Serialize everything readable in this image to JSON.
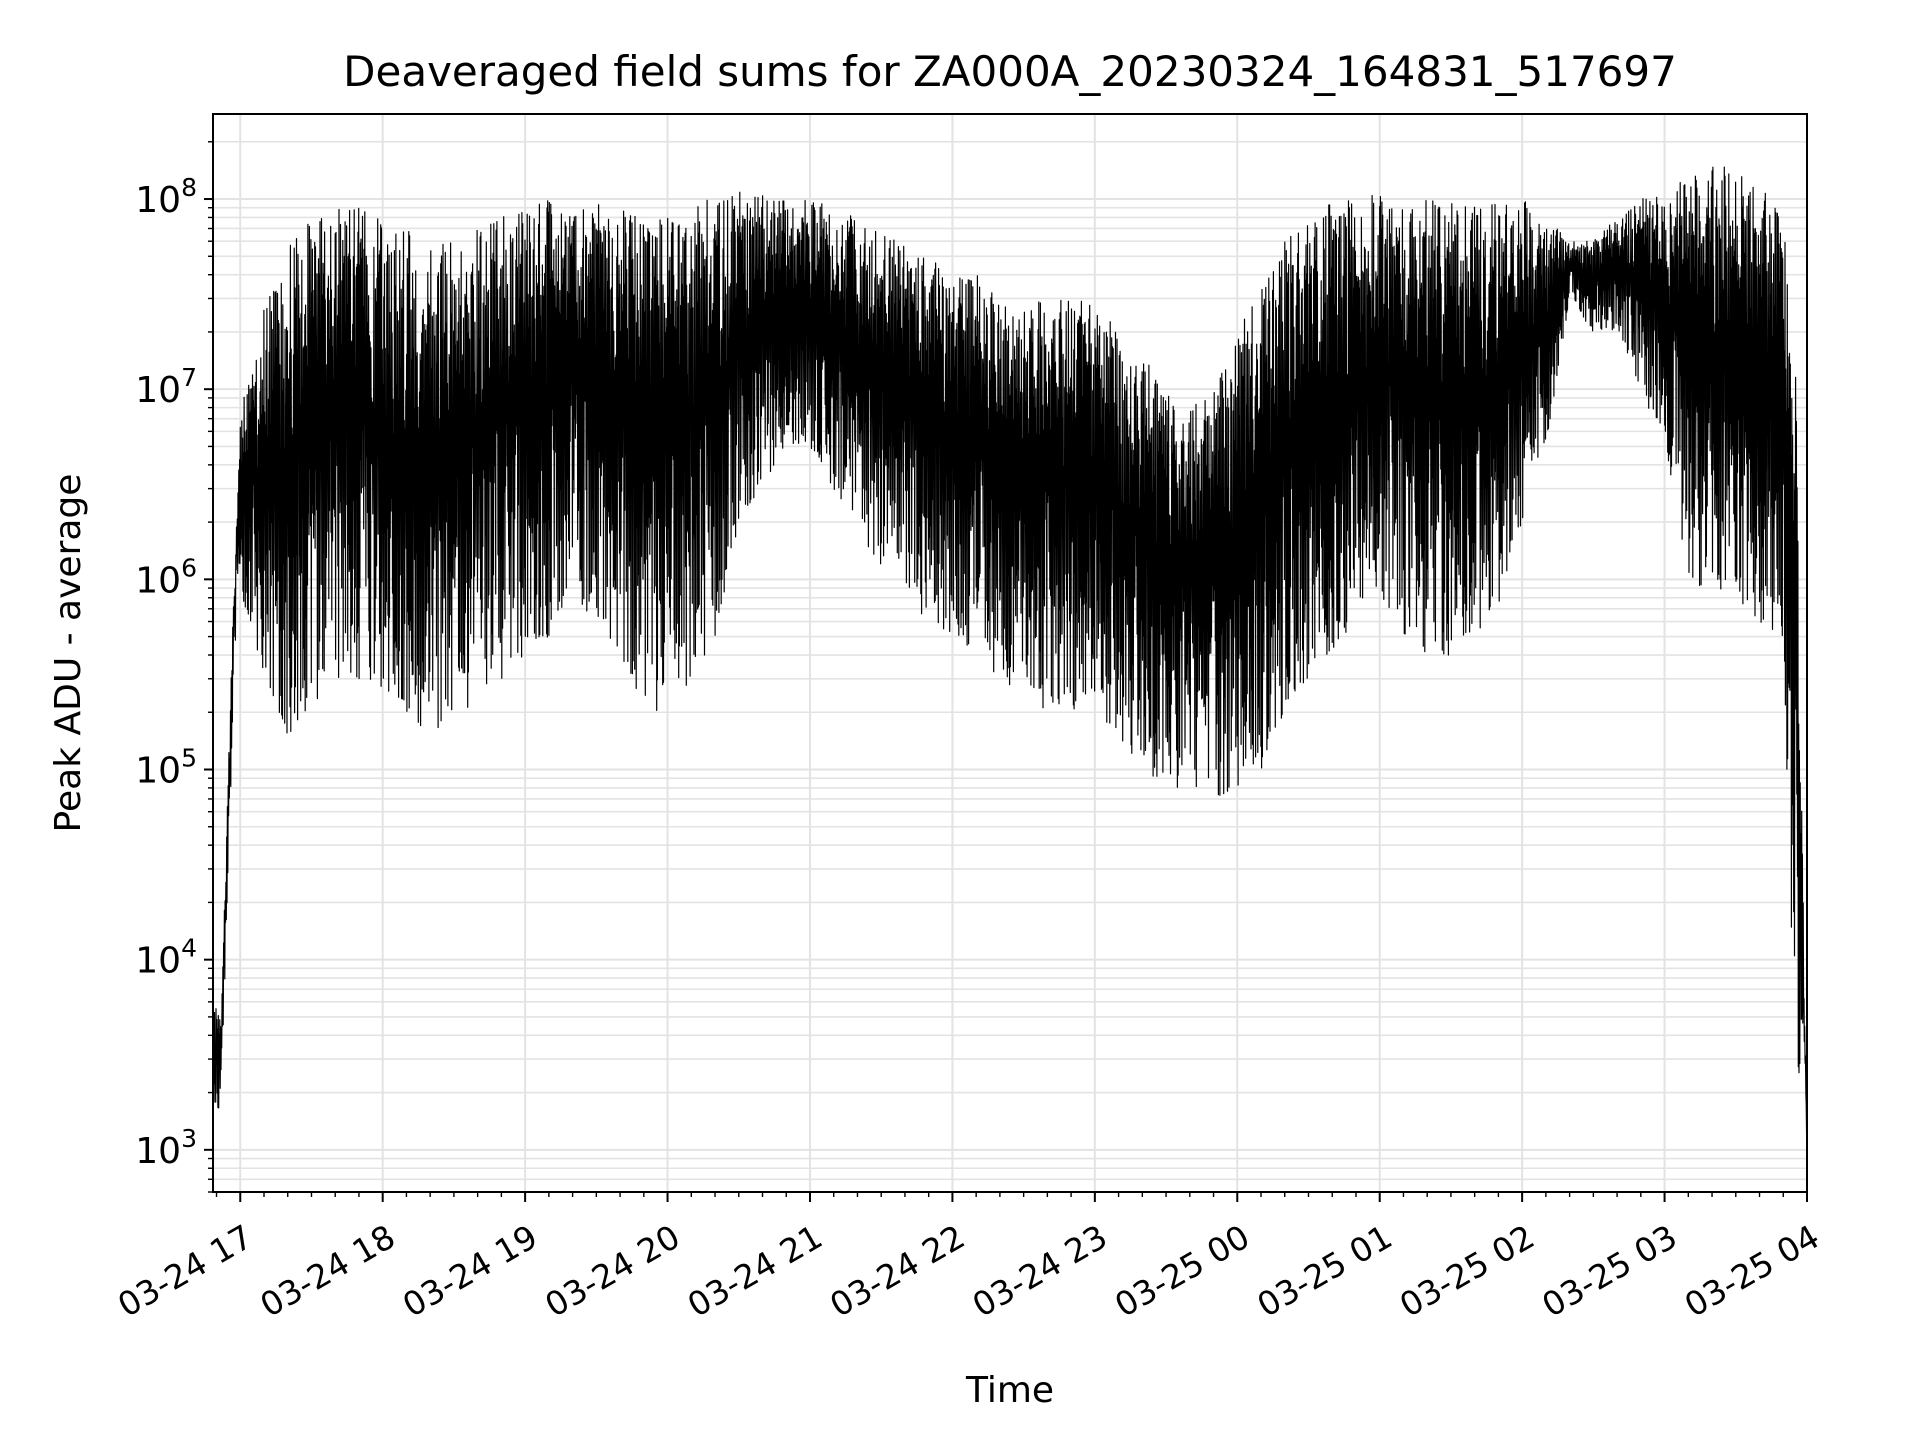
{
  "chart_data": {
    "type": "line",
    "title": "Deaveraged field sums for ZA000A_20230324_164831_517697",
    "xlabel": "Time",
    "ylabel": "Peak ADU - average",
    "y_scale": "log",
    "ylim": [
      600,
      280000000
    ],
    "xlim": [
      "2023-03-24 16:48:31",
      "2023-03-25 04:00:00"
    ],
    "grid": true,
    "line_color": "#000000",
    "x_ticks": [
      {
        "t": "2023-03-24 17:00",
        "label": "03-24 17"
      },
      {
        "t": "2023-03-24 18:00",
        "label": "03-24 18"
      },
      {
        "t": "2023-03-24 19:00",
        "label": "03-24 19"
      },
      {
        "t": "2023-03-24 20:00",
        "label": "03-24 20"
      },
      {
        "t": "2023-03-24 21:00",
        "label": "03-24 21"
      },
      {
        "t": "2023-03-24 22:00",
        "label": "03-24 22"
      },
      {
        "t": "2023-03-24 23:00",
        "label": "03-24 23"
      },
      {
        "t": "2023-03-25 00:00",
        "label": "03-25 00"
      },
      {
        "t": "2023-03-25 01:00",
        "label": "03-25 01"
      },
      {
        "t": "2023-03-25 02:00",
        "label": "03-25 02"
      },
      {
        "t": "2023-03-25 03:00",
        "label": "03-25 03"
      },
      {
        "t": "2023-03-25 04:00",
        "label": "03-25 04"
      }
    ],
    "y_ticks": [
      {
        "value": 1000,
        "base": "10",
        "exp": "3"
      },
      {
        "value": 10000,
        "base": "10",
        "exp": "4"
      },
      {
        "value": 100000,
        "base": "10",
        "exp": "5"
      },
      {
        "value": 1000000,
        "base": "10",
        "exp": "6"
      },
      {
        "value": 10000000,
        "base": "10",
        "exp": "7"
      },
      {
        "value": 100000000,
        "base": "10",
        "exp": "8"
      }
    ],
    "series": [
      {
        "envelope": {
          "x": [
            "2023-03-24 16:48:31",
            "2023-03-24 16:52",
            "2023-03-24 16:55",
            "2023-03-24 16:58",
            "2023-03-24 17:00",
            "2023-03-24 17:10",
            "2023-03-24 17:20",
            "2023-03-24 17:30",
            "2023-03-24 17:40",
            "2023-03-24 17:50",
            "2023-03-24 18:00",
            "2023-03-24 18:10",
            "2023-03-24 18:20",
            "2023-03-24 18:30",
            "2023-03-24 18:40",
            "2023-03-24 18:50",
            "2023-03-24 19:00",
            "2023-03-24 19:10",
            "2023-03-24 19:20",
            "2023-03-24 19:30",
            "2023-03-24 19:40",
            "2023-03-24 19:50",
            "2023-03-24 20:00",
            "2023-03-24 20:10",
            "2023-03-24 20:20",
            "2023-03-24 20:30",
            "2023-03-24 20:40",
            "2023-03-24 20:50",
            "2023-03-24 21:00",
            "2023-03-24 21:10",
            "2023-03-24 21:20",
            "2023-03-24 21:30",
            "2023-03-24 21:40",
            "2023-03-24 21:50",
            "2023-03-24 22:00",
            "2023-03-24 22:10",
            "2023-03-24 22:20",
            "2023-03-24 22:30",
            "2023-03-24 22:40",
            "2023-03-24 22:50",
            "2023-03-24 23:00",
            "2023-03-24 23:10",
            "2023-03-24 23:20",
            "2023-03-24 23:30",
            "2023-03-24 23:40",
            "2023-03-24 23:50",
            "2023-03-25 00:00",
            "2023-03-25 00:10",
            "2023-03-25 00:20",
            "2023-03-25 00:30",
            "2023-03-25 00:40",
            "2023-03-25 00:50",
            "2023-03-25 01:00",
            "2023-03-25 01:10",
            "2023-03-25 01:20",
            "2023-03-25 01:30",
            "2023-03-25 01:40",
            "2023-03-25 01:50",
            "2023-03-25 02:00",
            "2023-03-25 02:10",
            "2023-03-25 02:20",
            "2023-03-25 02:30",
            "2023-03-25 02:40",
            "2023-03-25 02:50",
            "2023-03-25 03:00",
            "2023-03-25 03:10",
            "2023-03-25 03:20",
            "2023-03-25 03:30",
            "2023-03-25 03:40",
            "2023-03-25 03:50",
            "2023-03-25 03:55",
            "2023-03-25 03:59",
            "2023-03-25 04:00"
          ],
          "low": [
            1100,
            2000,
            30000,
            500000,
            900000,
            300000,
            150000,
            200000,
            300000,
            300000,
            250000,
            200000,
            150000,
            200000,
            200000,
            300000,
            400000,
            500000,
            800000,
            600000,
            400000,
            200000,
            200000,
            300000,
            500000,
            2000000,
            3000000,
            5000000,
            5000000,
            3000000,
            2000000,
            1000000,
            800000,
            600000,
            500000,
            400000,
            300000,
            250000,
            200000,
            200000,
            200000,
            150000,
            100000,
            80000,
            70000,
            70000,
            80000,
            100000,
            200000,
            300000,
            400000,
            600000,
            800000,
            500000,
            400000,
            400000,
            500000,
            700000,
            2000000,
            5000000,
            30000000,
            20000000,
            20000000,
            10000000,
            5000000,
            1000000,
            800000,
            800000,
            600000,
            500000,
            2500,
            2500,
            1000
          ],
          "high": [
            6000,
            5000,
            100000,
            2000000,
            8000000,
            30000000,
            60000000,
            80000000,
            90000000,
            90000000,
            80000000,
            70000000,
            60000000,
            70000000,
            70000000,
            80000000,
            90000000,
            100000000,
            100000000,
            100000000,
            90000000,
            80000000,
            90000000,
            100000000,
            100000000,
            110000000,
            110000000,
            100000000,
            100000000,
            90000000,
            80000000,
            70000000,
            60000000,
            50000000,
            40000000,
            40000000,
            30000000,
            30000000,
            30000000,
            30000000,
            30000000,
            20000000,
            15000000,
            10000000,
            10000000,
            10000000,
            20000000,
            40000000,
            60000000,
            80000000,
            100000000,
            110000000,
            110000000,
            100000000,
            100000000,
            100000000,
            100000000,
            100000000,
            100000000,
            80000000,
            60000000,
            60000000,
            80000000,
            100000000,
            110000000,
            130000000,
            150000000,
            150000000,
            120000000,
            80000000,
            20000000,
            6000,
            1000
          ]
        }
      }
    ]
  }
}
